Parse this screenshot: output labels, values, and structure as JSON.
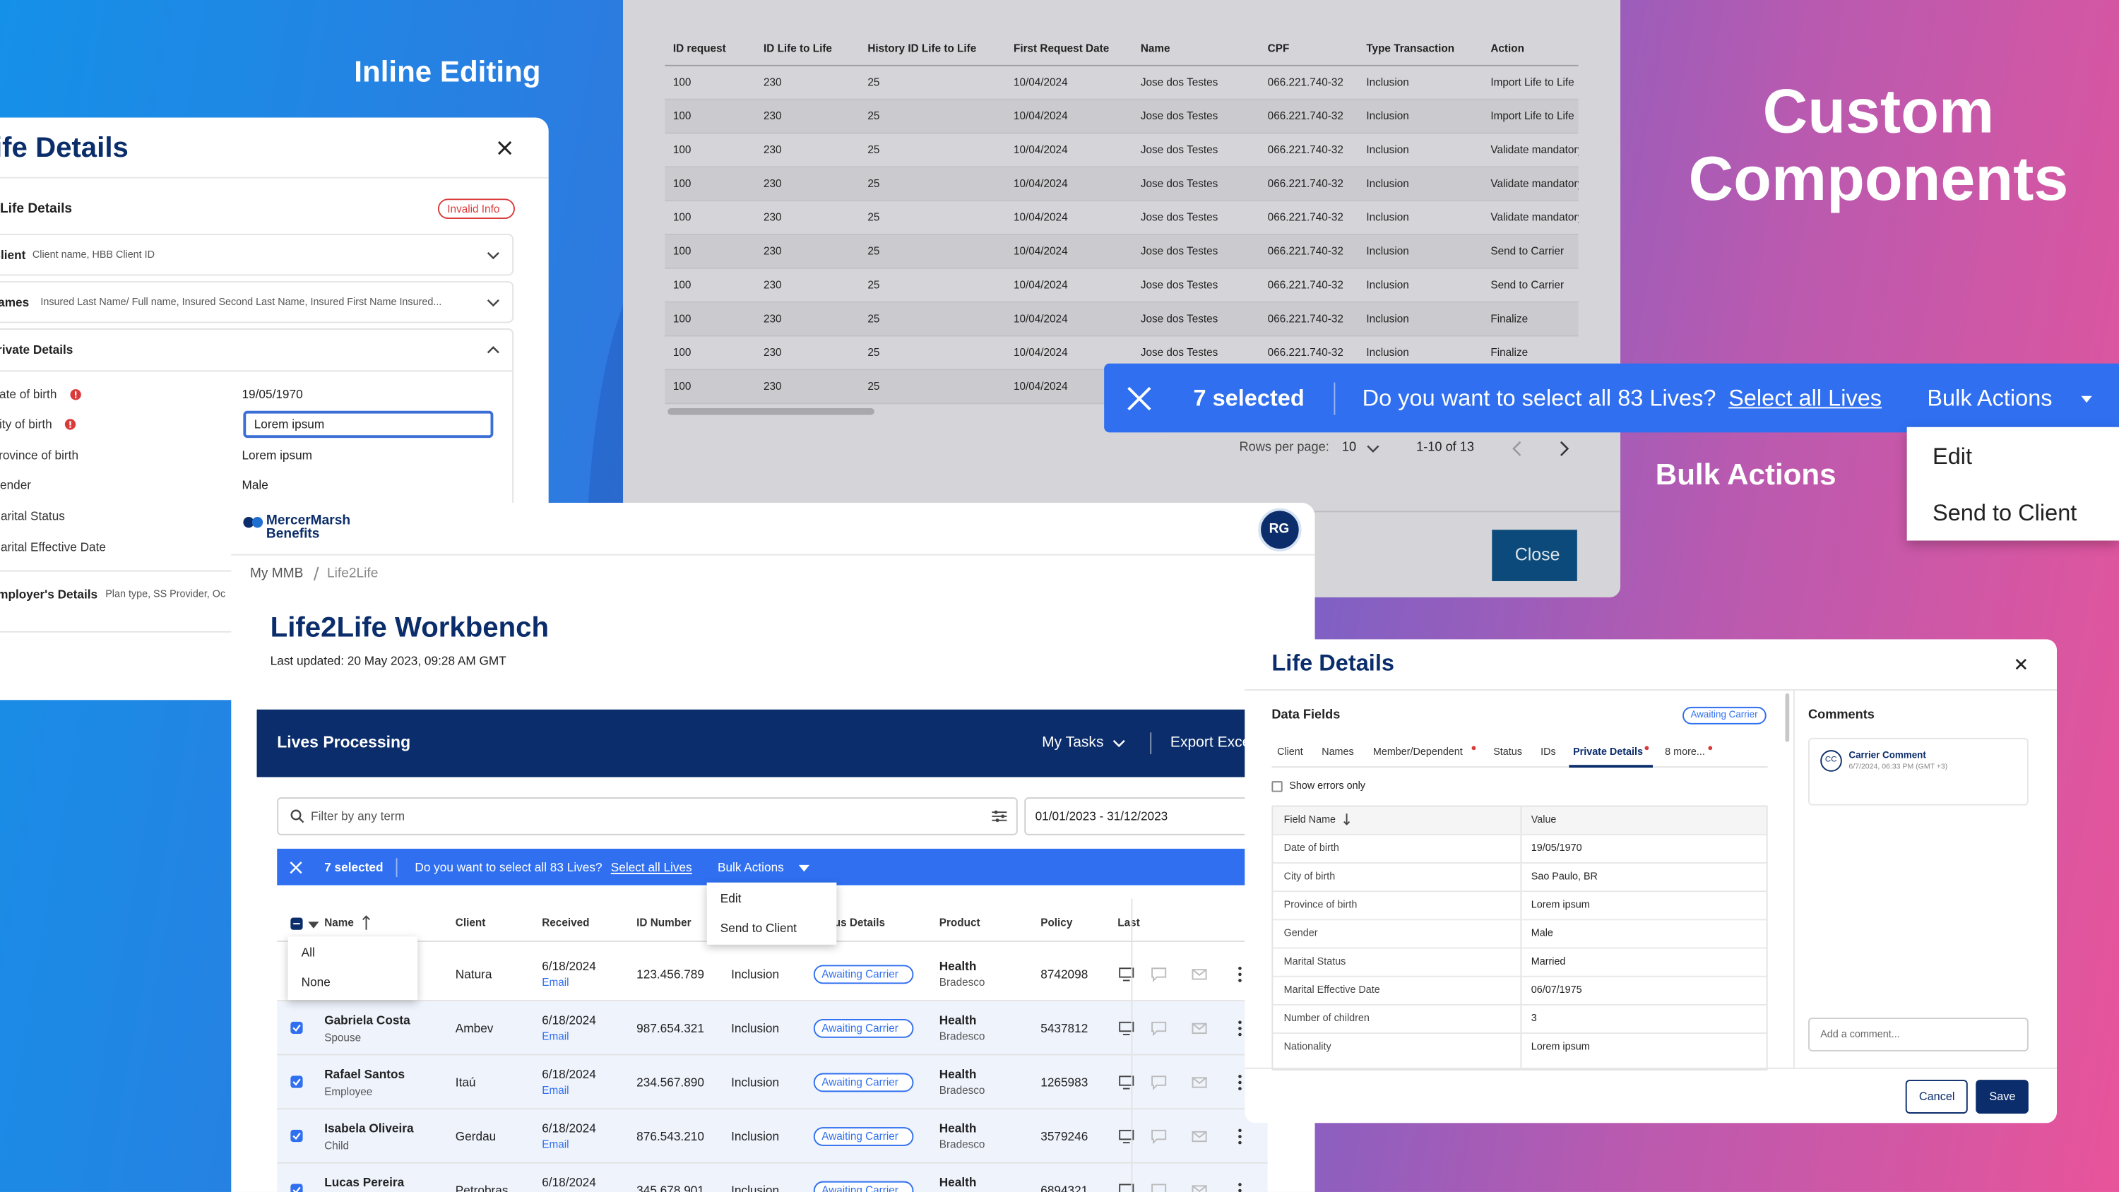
{
  "background": {
    "inline_editing": "Inline Editing",
    "custom_components": "Custom Components",
    "bulk_actions": "Bulk Actions"
  },
  "back_table": {
    "columns": [
      "ID request",
      "ID Life to Life",
      "History ID Life to Life",
      "First Request Date",
      "Name",
      "CPF",
      "Type Transaction",
      "Action"
    ],
    "rows": [
      [
        "100",
        "230",
        "25",
        "10/04/2024",
        "Jose dos Testes",
        "066.221.740-32",
        "Inclusion",
        "Import Life to Life"
      ],
      [
        "100",
        "230",
        "25",
        "10/04/2024",
        "Jose dos Testes",
        "066.221.740-32",
        "Inclusion",
        "Import Life to Life"
      ],
      [
        "100",
        "230",
        "25",
        "10/04/2024",
        "Jose dos Testes",
        "066.221.740-32",
        "Inclusion",
        "Validate mandatory"
      ],
      [
        "100",
        "230",
        "25",
        "10/04/2024",
        "Jose dos Testes",
        "066.221.740-32",
        "Inclusion",
        "Validate mandatory"
      ],
      [
        "100",
        "230",
        "25",
        "10/04/2024",
        "Jose dos Testes",
        "066.221.740-32",
        "Inclusion",
        "Validate mandatory"
      ],
      [
        "100",
        "230",
        "25",
        "10/04/2024",
        "Jose dos Testes",
        "066.221.740-32",
        "Inclusion",
        "Send to Carrier"
      ],
      [
        "100",
        "230",
        "25",
        "10/04/2024",
        "Jose dos Testes",
        "066.221.740-32",
        "Inclusion",
        "Send to Carrier"
      ],
      [
        "100",
        "230",
        "25",
        "10/04/2024",
        "Jose dos Testes",
        "066.221.740-32",
        "Inclusion",
        "Finalize"
      ],
      [
        "100",
        "230",
        "25",
        "10/04/2024",
        "Jose dos Testes",
        "066.221.740-32",
        "Inclusion",
        "Finalize"
      ],
      [
        "100",
        "230",
        "25",
        "10/04/2024"
      ]
    ],
    "rows_per_page_label": "Rows per page:",
    "rows_per_page": "10",
    "range": "1-10 of 13",
    "close": "Close"
  },
  "bulk_bar": {
    "count": "7 selected",
    "question": "Do you want to select all 83 Lives?",
    "link": "Select all Lives",
    "menu": "Bulk Actions",
    "options": [
      "Edit",
      "Send to Client"
    ]
  },
  "left_panel": {
    "title": "Life Details",
    "section": "Life Details",
    "badge": "Invalid Info",
    "accordions": [
      {
        "label": "Client",
        "hint": "Client name, HBB Client ID"
      },
      {
        "label": "Names",
        "hint": "Insured Last Name/ Full name, Insured Second Last Name, Insured First Name Insured..."
      },
      {
        "label": "Private Details"
      }
    ],
    "fields": [
      {
        "label": "Date of birth",
        "value": "19/05/1970"
      },
      {
        "label": "City of birth",
        "value": "Lorem ipsum"
      },
      {
        "label": "Province of birth",
        "value": "Lorem ipsum"
      },
      {
        "label": "Gender",
        "value": "Male"
      },
      {
        "label": "Marital Status"
      },
      {
        "label": "Marital Effective Date"
      }
    ],
    "employer": {
      "label": "Employer's Details",
      "hint": "Plan type, SS Provider, Oc"
    }
  },
  "workbench": {
    "logo": "MercerMarsh Benefits",
    "avatar": "RG",
    "breadcrumb": [
      "My MMB",
      "Life2Life"
    ],
    "title": "Life2Life Workbench",
    "updated": "Last updated: 20 May 2023, 09:28 AM GMT",
    "bar_title": "Lives Processing",
    "my_tasks": "My Tasks",
    "export": "Export Excel",
    "filter_placeholder": "Filter by any term",
    "date_range": "01/01/2023 - 31/12/2023",
    "selection": {
      "count": "7 selected",
      "question": "Do you want to select all 83 Lives?",
      "link": "Select all Lives",
      "menu": "Bulk Actions",
      "options": [
        "Edit",
        "Send to Client"
      ]
    },
    "select_menu": [
      "All",
      "None"
    ],
    "columns": [
      "Name",
      "Client",
      "Received",
      "ID Number",
      "Status Details",
      "Product",
      "Policy",
      "Last"
    ],
    "rows": [
      {
        "name": null,
        "role": null,
        "client": "Natura",
        "received": "6/18/2024",
        "channel": "Email",
        "id": "123.456.789",
        "type": "Inclusion",
        "status": "Awaiting Carrier",
        "product": "Health",
        "carrier": "Bradesco",
        "policy": "8742098",
        "checked": false
      },
      {
        "name": "Gabriela Costa",
        "role": "Spouse",
        "client": "Ambev",
        "received": "6/18/2024",
        "channel": "Email",
        "id": "987.654.321",
        "type": "Inclusion",
        "status": "Awaiting Carrier",
        "product": "Health",
        "carrier": "Bradesco",
        "policy": "5437812",
        "checked": true
      },
      {
        "name": "Rafael Santos",
        "role": "Employee",
        "client": "Itaú",
        "received": "6/18/2024",
        "channel": "Email",
        "id": "234.567.890",
        "type": "Inclusion",
        "status": "Awaiting Carrier",
        "product": "Health",
        "carrier": "Bradesco",
        "policy": "1265983",
        "checked": true
      },
      {
        "name": "Isabela Oliveira",
        "role": "Child",
        "client": "Gerdau",
        "received": "6/18/2024",
        "channel": "Email",
        "id": "876.543.210",
        "type": "Inclusion",
        "status": "Awaiting Carrier",
        "product": "Health",
        "carrier": "Bradesco",
        "policy": "3579246",
        "checked": true
      },
      {
        "name": "Lucas Pereira",
        "role": null,
        "client": "Petrobras",
        "received": "6/18/2024",
        "channel": null,
        "id": "345.678.901",
        "type": "Inclusion",
        "status": "Awaiting Carrier",
        "product": "Health",
        "carrier": null,
        "policy": "6894321",
        "checked": true
      }
    ]
  },
  "dialog": {
    "title": "Life Details",
    "section": "Data Fields",
    "badge": "Awaiting Carrier",
    "tabs": [
      "Client",
      "Names",
      "Member/Dependent",
      "Status",
      "IDs",
      "Private Details",
      "8 more..."
    ],
    "show_errors": "Show errors only",
    "headers": [
      "Field Name",
      "Value"
    ],
    "rows": [
      [
        "Date of birth",
        "19/05/1970"
      ],
      [
        "City of birth",
        "Sao Paulo, BR"
      ],
      [
        "Province of birth",
        "Lorem ipsum"
      ],
      [
        "Gender",
        "Male"
      ],
      [
        "Marital Status",
        "Married"
      ],
      [
        "Marital Effective Date",
        "06/07/1975"
      ],
      [
        "Number of children",
        "3"
      ],
      [
        "Nationality",
        "Lorem ipsum"
      ]
    ],
    "comments_title": "Comments",
    "comment": {
      "initials": "CC",
      "author": "Carrier Comment",
      "time": "6/7/2024, 06:33 PM (GMT +3)"
    },
    "comment_placeholder": "Add a comment...",
    "cancel": "Cancel",
    "save": "Save"
  }
}
